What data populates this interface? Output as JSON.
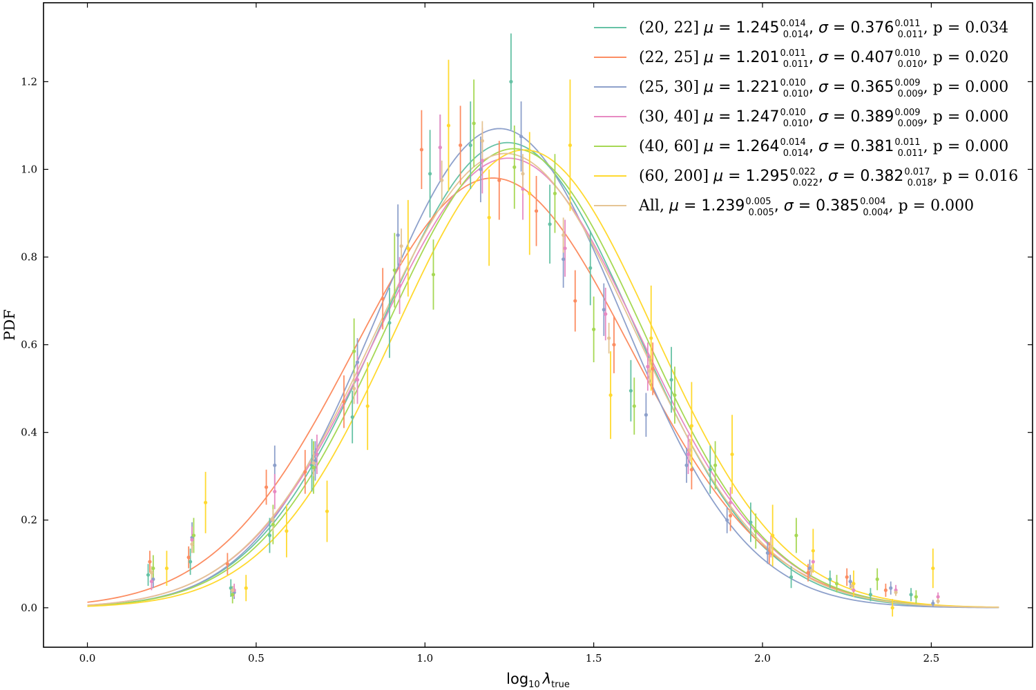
{
  "chart_data": {
    "type": "line",
    "xlabel_base": "log",
    "xlabel_base_sub": "10",
    "xlabel_lambda": "λ",
    "xlabel_lambda_sub": "true",
    "ylabel": "PDF",
    "xlim": [
      -0.13,
      2.8
    ],
    "ylim": [
      -0.09,
      1.38
    ],
    "x_ticks": [
      0.0,
      0.5,
      1.0,
      1.5,
      2.0,
      2.5
    ],
    "x_tick_labels": [
      "0.0",
      "0.5",
      "1.0",
      "1.5",
      "2.0",
      "2.5"
    ],
    "y_ticks": [
      0.0,
      0.2,
      0.4,
      0.6,
      0.8,
      1.0,
      1.2
    ],
    "y_tick_labels": [
      "0.0",
      "0.2",
      "0.4",
      "0.6",
      "0.8",
      "1.0",
      "1.2"
    ],
    "legend_placement": "top-right",
    "curve_x_range": [
      0.0,
      2.7
    ],
    "series": [
      {
        "name": "(20, 22]",
        "color": "#66c2a5",
        "mu": "1.245",
        "mu_up": "0.014",
        "mu_lo": "0.014",
        "sigma": "0.376",
        "sigma_up": "0.011",
        "sigma_lo": "0.011",
        "p": "0.034",
        "mu_val": 1.245,
        "sigma_val": 0.376,
        "points": [
          {
            "x": 0.18,
            "y": 0.075,
            "err": 0.025
          },
          {
            "x": 0.305,
            "y": 0.105,
            "err": 0.03
          },
          {
            "x": 0.425,
            "y": 0.045,
            "err": 0.02
          },
          {
            "x": 0.54,
            "y": 0.165,
            "err": 0.04
          },
          {
            "x": 0.665,
            "y": 0.325,
            "err": 0.06
          },
          {
            "x": 0.785,
            "y": 0.435,
            "err": 0.06
          },
          {
            "x": 0.895,
            "y": 0.65,
            "err": 0.08
          },
          {
            "x": 1.015,
            "y": 0.99,
            "err": 0.1
          },
          {
            "x": 1.135,
            "y": 1.055,
            "err": 0.1
          },
          {
            "x": 1.255,
            "y": 1.2,
            "err": 0.11
          },
          {
            "x": 1.37,
            "y": 0.875,
            "err": 0.09
          },
          {
            "x": 1.49,
            "y": 0.775,
            "err": 0.085
          },
          {
            "x": 1.61,
            "y": 0.495,
            "err": 0.07
          },
          {
            "x": 1.73,
            "y": 0.52,
            "err": 0.075
          },
          {
            "x": 1.845,
            "y": 0.315,
            "err": 0.055
          },
          {
            "x": 1.965,
            "y": 0.195,
            "err": 0.045
          },
          {
            "x": 2.085,
            "y": 0.07,
            "err": 0.025
          },
          {
            "x": 2.2,
            "y": 0.065,
            "err": 0.02
          },
          {
            "x": 2.32,
            "y": 0.03,
            "err": 0.015
          },
          {
            "x": 2.44,
            "y": 0.03,
            "err": 0.015
          }
        ]
      },
      {
        "name": "(22, 25]",
        "color": "#fc8d62",
        "mu": "1.201",
        "mu_up": "0.011",
        "mu_lo": "0.011",
        "sigma": "0.407",
        "sigma_up": "0.010",
        "sigma_lo": "0.010",
        "p": "0.020",
        "mu_val": 1.201,
        "sigma_val": 0.407,
        "points": [
          {
            "x": 0.185,
            "y": 0.105,
            "err": 0.025
          },
          {
            "x": 0.3,
            "y": 0.115,
            "err": 0.025
          },
          {
            "x": 0.415,
            "y": 0.1,
            "err": 0.025
          },
          {
            "x": 0.53,
            "y": 0.275,
            "err": 0.04
          },
          {
            "x": 0.645,
            "y": 0.31,
            "err": 0.05
          },
          {
            "x": 0.76,
            "y": 0.47,
            "err": 0.06
          },
          {
            "x": 0.875,
            "y": 0.705,
            "err": 0.07
          },
          {
            "x": 0.99,
            "y": 1.045,
            "err": 0.09
          },
          {
            "x": 1.105,
            "y": 1.055,
            "err": 0.09
          },
          {
            "x": 1.22,
            "y": 0.975,
            "err": 0.09
          },
          {
            "x": 1.33,
            "y": 0.905,
            "err": 0.08
          },
          {
            "x": 1.445,
            "y": 0.7,
            "err": 0.07
          },
          {
            "x": 1.56,
            "y": 0.6,
            "err": 0.065
          },
          {
            "x": 1.675,
            "y": 0.545,
            "err": 0.06
          },
          {
            "x": 1.79,
            "y": 0.315,
            "err": 0.045
          },
          {
            "x": 1.905,
            "y": 0.21,
            "err": 0.035
          },
          {
            "x": 2.02,
            "y": 0.125,
            "err": 0.025
          },
          {
            "x": 2.135,
            "y": 0.08,
            "err": 0.02
          },
          {
            "x": 2.25,
            "y": 0.07,
            "err": 0.02
          },
          {
            "x": 2.365,
            "y": 0.04,
            "err": 0.015
          }
        ]
      },
      {
        "name": "(25, 30]",
        "color": "#8da0cb",
        "mu": "1.221",
        "mu_up": "0.010",
        "mu_lo": "0.010",
        "sigma": "0.365",
        "sigma_up": "0.009",
        "sigma_lo": "0.009",
        "p": "0.000",
        "mu_val": 1.221,
        "sigma_val": 0.365,
        "points": [
          {
            "x": 0.195,
            "y": 0.065,
            "err": 0.02
          },
          {
            "x": 0.31,
            "y": 0.16,
            "err": 0.035
          },
          {
            "x": 0.435,
            "y": 0.035,
            "err": 0.015
          },
          {
            "x": 0.555,
            "y": 0.325,
            "err": 0.045
          },
          {
            "x": 0.675,
            "y": 0.335,
            "err": 0.045
          },
          {
            "x": 0.8,
            "y": 0.56,
            "err": 0.055
          },
          {
            "x": 0.92,
            "y": 0.85,
            "err": 0.07
          },
          {
            "x": 1.045,
            "y": 1.05,
            "err": 0.075
          },
          {
            "x": 1.165,
            "y": 1.0,
            "err": 0.075
          },
          {
            "x": 1.285,
            "y": 1.075,
            "err": 0.08
          },
          {
            "x": 1.41,
            "y": 0.795,
            "err": 0.065
          },
          {
            "x": 1.53,
            "y": 0.68,
            "err": 0.06
          },
          {
            "x": 1.655,
            "y": 0.44,
            "err": 0.05
          },
          {
            "x": 1.775,
            "y": 0.325,
            "err": 0.04
          },
          {
            "x": 1.895,
            "y": 0.2,
            "err": 0.03
          },
          {
            "x": 2.015,
            "y": 0.125,
            "err": 0.025
          },
          {
            "x": 2.14,
            "y": 0.09,
            "err": 0.02
          },
          {
            "x": 2.26,
            "y": 0.06,
            "err": 0.015
          },
          {
            "x": 2.38,
            "y": 0.045,
            "err": 0.015
          },
          {
            "x": 2.505,
            "y": 0.01,
            "err": 0.008
          }
        ]
      },
      {
        "name": "(30, 40]",
        "color": "#e78ac3",
        "mu": "1.247",
        "mu_up": "0.010",
        "mu_lo": "0.010",
        "sigma": "0.389",
        "sigma_up": "0.009",
        "sigma_lo": "0.009",
        "p": "0.000",
        "mu_val": 1.247,
        "sigma_val": 0.389,
        "points": [
          {
            "x": 0.19,
            "y": 0.06,
            "err": 0.02
          },
          {
            "x": 0.31,
            "y": 0.155,
            "err": 0.03
          },
          {
            "x": 0.435,
            "y": 0.04,
            "err": 0.015
          },
          {
            "x": 0.555,
            "y": 0.265,
            "err": 0.04
          },
          {
            "x": 0.68,
            "y": 0.35,
            "err": 0.045
          },
          {
            "x": 0.8,
            "y": 0.52,
            "err": 0.055
          },
          {
            "x": 0.925,
            "y": 0.735,
            "err": 0.065
          },
          {
            "x": 1.045,
            "y": 1.05,
            "err": 0.075
          },
          {
            "x": 1.17,
            "y": 1.02,
            "err": 0.075
          },
          {
            "x": 1.29,
            "y": 0.955,
            "err": 0.07
          },
          {
            "x": 1.415,
            "y": 0.82,
            "err": 0.065
          },
          {
            "x": 1.535,
            "y": 0.67,
            "err": 0.06
          },
          {
            "x": 1.66,
            "y": 0.55,
            "err": 0.055
          },
          {
            "x": 1.78,
            "y": 0.35,
            "err": 0.045
          },
          {
            "x": 1.905,
            "y": 0.24,
            "err": 0.035
          },
          {
            "x": 2.025,
            "y": 0.14,
            "err": 0.025
          },
          {
            "x": 2.15,
            "y": 0.105,
            "err": 0.02
          },
          {
            "x": 2.27,
            "y": 0.04,
            "err": 0.015
          },
          {
            "x": 2.395,
            "y": 0.04,
            "err": 0.012
          },
          {
            "x": 2.52,
            "y": 0.025,
            "err": 0.01
          }
        ]
      },
      {
        "name": "(40, 60]",
        "color": "#a6d854",
        "mu": "1.264",
        "mu_up": "0.014",
        "mu_lo": "0.014",
        "sigma": "0.381",
        "sigma_up": "0.011",
        "sigma_lo": "0.011",
        "p": "0.000",
        "mu_val": 1.264,
        "sigma_val": 0.381,
        "points": [
          {
            "x": 0.195,
            "y": 0.09,
            "err": 0.03
          },
          {
            "x": 0.315,
            "y": 0.165,
            "err": 0.04
          },
          {
            "x": 0.43,
            "y": 0.03,
            "err": 0.02
          },
          {
            "x": 0.55,
            "y": 0.19,
            "err": 0.045
          },
          {
            "x": 0.67,
            "y": 0.32,
            "err": 0.06
          },
          {
            "x": 0.79,
            "y": 0.585,
            "err": 0.075
          },
          {
            "x": 0.91,
            "y": 0.77,
            "err": 0.085
          },
          {
            "x": 1.025,
            "y": 0.76,
            "err": 0.08
          },
          {
            "x": 1.145,
            "y": 1.105,
            "err": 0.1
          },
          {
            "x": 1.265,
            "y": 1.005,
            "err": 0.095
          },
          {
            "x": 1.385,
            "y": 0.945,
            "err": 0.09
          },
          {
            "x": 1.5,
            "y": 0.635,
            "err": 0.075
          },
          {
            "x": 1.62,
            "y": 0.46,
            "err": 0.065
          },
          {
            "x": 1.74,
            "y": 0.485,
            "err": 0.065
          },
          {
            "x": 1.86,
            "y": 0.325,
            "err": 0.055
          },
          {
            "x": 1.98,
            "y": 0.175,
            "err": 0.04
          },
          {
            "x": 2.1,
            "y": 0.165,
            "err": 0.04
          },
          {
            "x": 2.22,
            "y": 0.055,
            "err": 0.02
          },
          {
            "x": 2.34,
            "y": 0.065,
            "err": 0.025
          },
          {
            "x": 2.455,
            "y": 0.025,
            "err": 0.015
          }
        ]
      },
      {
        "name": "(60, 200]",
        "color": "#ffd92f",
        "mu": "1.295",
        "mu_up": "0.022",
        "mu_lo": "0.022",
        "sigma": "0.382",
        "sigma_up": "0.017",
        "sigma_lo": "0.018",
        "p": "0.016",
        "mu_val": 1.295,
        "sigma_val": 0.382,
        "points": [
          {
            "x": 0.235,
            "y": 0.09,
            "err": 0.04
          },
          {
            "x": 0.35,
            "y": 0.24,
            "err": 0.07
          },
          {
            "x": 0.47,
            "y": 0.045,
            "err": 0.03
          },
          {
            "x": 0.59,
            "y": 0.175,
            "err": 0.06
          },
          {
            "x": 0.71,
            "y": 0.22,
            "err": 0.07
          },
          {
            "x": 0.83,
            "y": 0.46,
            "err": 0.1
          },
          {
            "x": 0.95,
            "y": 0.82,
            "err": 0.11
          },
          {
            "x": 1.07,
            "y": 1.1,
            "err": 0.15
          },
          {
            "x": 1.19,
            "y": 0.89,
            "err": 0.11
          },
          {
            "x": 1.31,
            "y": 0.945,
            "err": 0.14
          },
          {
            "x": 1.43,
            "y": 1.055,
            "err": 0.15
          },
          {
            "x": 1.55,
            "y": 0.485,
            "err": 0.1
          },
          {
            "x": 1.67,
            "y": 0.615,
            "err": 0.12
          },
          {
            "x": 1.79,
            "y": 0.415,
            "err": 0.1
          },
          {
            "x": 1.91,
            "y": 0.35,
            "err": 0.09
          },
          {
            "x": 2.03,
            "y": 0.165,
            "err": 0.07
          },
          {
            "x": 2.15,
            "y": 0.13,
            "err": 0.05
          },
          {
            "x": 2.27,
            "y": 0.055,
            "err": 0.03
          },
          {
            "x": 2.385,
            "y": 0.0,
            "err": 0.02
          },
          {
            "x": 2.505,
            "y": 0.09,
            "err": 0.045
          }
        ]
      },
      {
        "name": "All,",
        "color": "#e5c494",
        "mu": "1.239",
        "mu_up": "0.005",
        "mu_lo": "0.005",
        "sigma": "0.385",
        "sigma_up": "0.004",
        "sigma_lo": "0.004",
        "p": "0.000",
        "mu_val": 1.239,
        "sigma_val": 0.385,
        "points": [
          {
            "x": 0.19,
            "y": 0.08,
            "err": 0.015
          },
          {
            "x": 0.31,
            "y": 0.145,
            "err": 0.02
          },
          {
            "x": 0.43,
            "y": 0.04,
            "err": 0.01
          },
          {
            "x": 0.55,
            "y": 0.2,
            "err": 0.025
          },
          {
            "x": 0.67,
            "y": 0.33,
            "err": 0.03
          },
          {
            "x": 0.79,
            "y": 0.5,
            "err": 0.035
          },
          {
            "x": 0.93,
            "y": 0.825,
            "err": 0.04
          },
          {
            "x": 1.05,
            "y": 0.975,
            "err": 0.045
          },
          {
            "x": 1.17,
            "y": 1.065,
            "err": 0.045
          },
          {
            "x": 1.29,
            "y": 0.99,
            "err": 0.045
          },
          {
            "x": 1.41,
            "y": 0.85,
            "err": 0.04
          },
          {
            "x": 1.545,
            "y": 0.615,
            "err": 0.035
          },
          {
            "x": 1.665,
            "y": 0.54,
            "err": 0.03
          },
          {
            "x": 1.785,
            "y": 0.36,
            "err": 0.025
          },
          {
            "x": 1.905,
            "y": 0.22,
            "err": 0.02
          },
          {
            "x": 2.025,
            "y": 0.14,
            "err": 0.015
          },
          {
            "x": 2.145,
            "y": 0.085,
            "err": 0.012
          },
          {
            "x": 2.265,
            "y": 0.05,
            "err": 0.01
          },
          {
            "x": 2.395,
            "y": 0.035,
            "err": 0.008
          },
          {
            "x": 2.52,
            "y": 0.015,
            "err": 0.006
          }
        ]
      }
    ]
  }
}
